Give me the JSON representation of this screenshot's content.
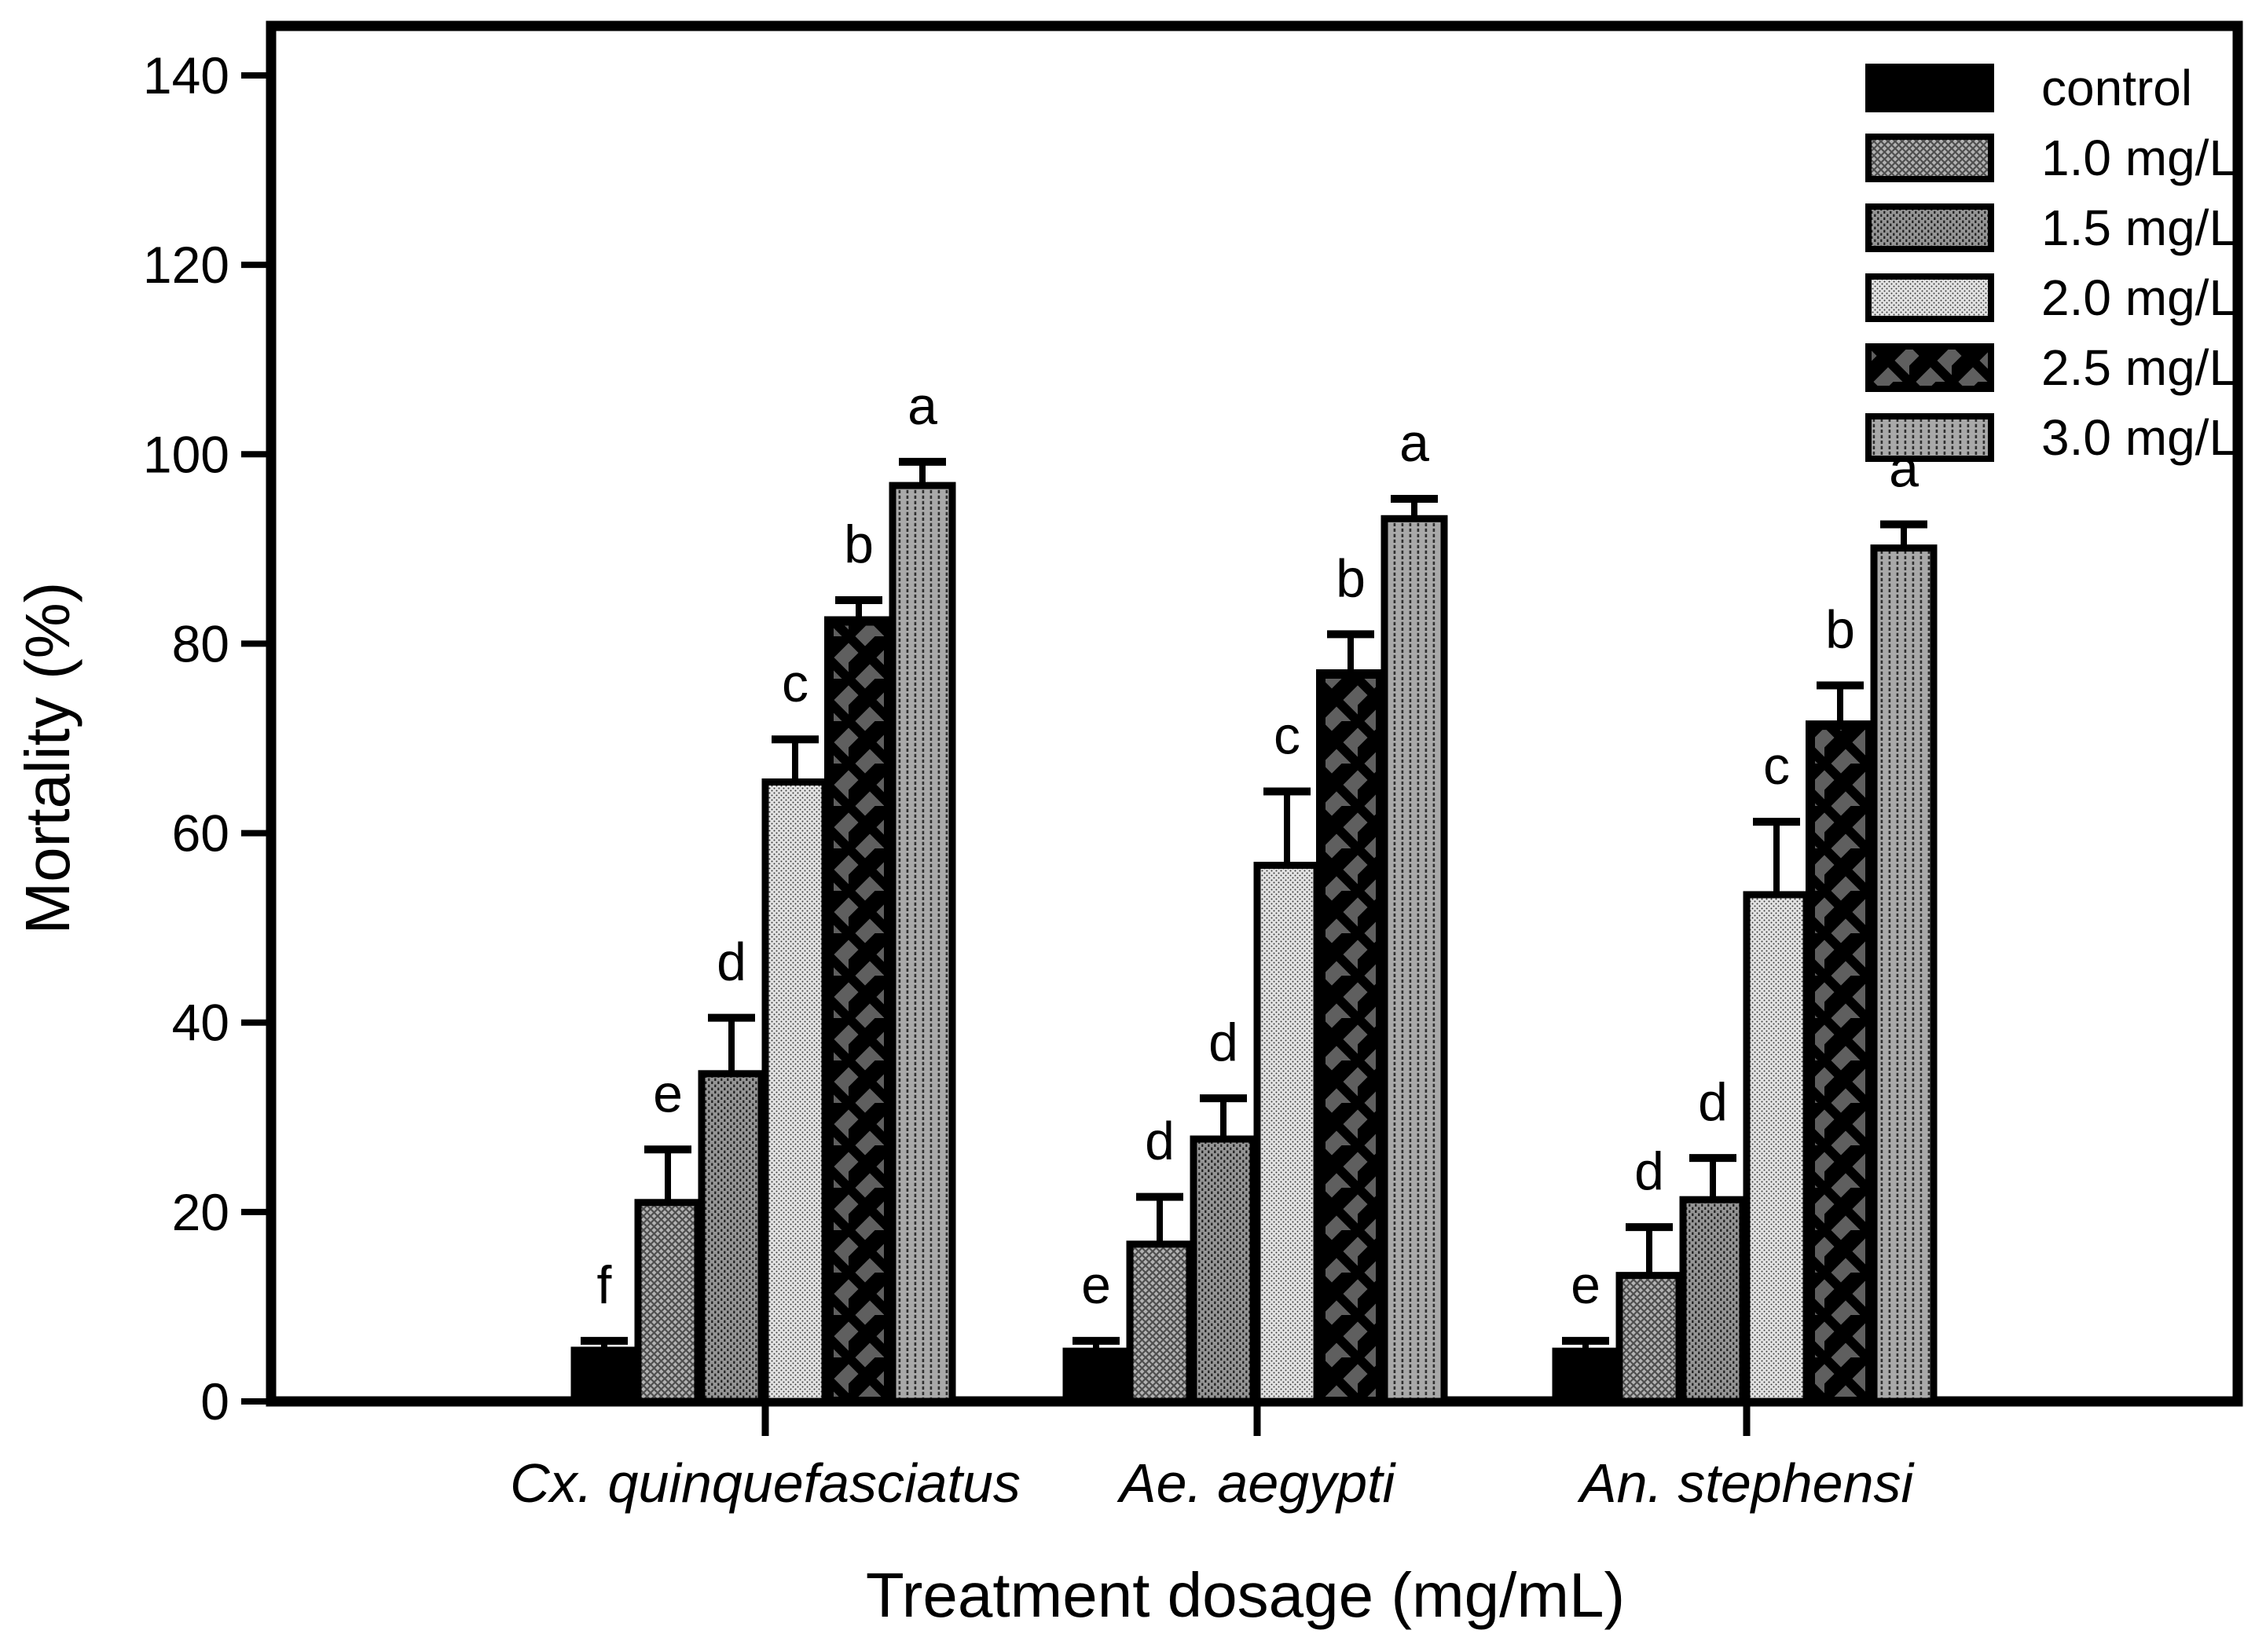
{
  "figure": {
    "background": "#ffffff",
    "frame_color": "#000000"
  },
  "chart_data": {
    "type": "bar",
    "title": "",
    "xlabel": "Treatment dosage (mg/mL)",
    "ylabel": "Mortality (%)",
    "ylim": [
      0,
      140
    ],
    "yticks": [
      0,
      20,
      40,
      60,
      80,
      100,
      120,
      140
    ],
    "grid": false,
    "error_bars": "upper",
    "legend_position": "top-right",
    "categories": [
      "Cx. quinquefasciatus",
      "Ae. aegypti",
      "An. stephensi"
    ],
    "series": [
      {
        "name": "control",
        "pattern": "solid-black",
        "color": "#000000",
        "values": [
          5.4,
          5.3,
          5.3
        ],
        "errors": [
          1.0,
          1.1,
          1.1
        ],
        "letters": [
          "f",
          "e",
          "e"
        ]
      },
      {
        "name": "1.0 mg/L",
        "pattern": "diagonal-weave",
        "color": "#b2b2b2",
        "values": [
          21.0,
          16.6,
          13.3
        ],
        "errors": [
          5.6,
          5.0,
          5.1
        ],
        "letters": [
          "e",
          "d",
          "d"
        ]
      },
      {
        "name": "1.5 mg/L",
        "pattern": "vertical-stipple-dark",
        "color": "#959595",
        "values": [
          34.6,
          27.7,
          21.3
        ],
        "errors": [
          5.9,
          4.3,
          4.4
        ],
        "letters": [
          "d",
          "d",
          "d"
        ]
      },
      {
        "name": "2.0 mg/L",
        "pattern": "fine-dots-light",
        "color": "#e3e3e3",
        "values": [
          65.4,
          56.6,
          53.5
        ],
        "errors": [
          4.5,
          7.8,
          7.7
        ],
        "letters": [
          "c",
          "c",
          "c"
        ]
      },
      {
        "name": "2.5 mg/L",
        "pattern": "crosshatch-dark",
        "color": "#5f5f5f",
        "values": [
          82.4,
          76.8,
          71.4
        ],
        "errors": [
          2.2,
          4.2,
          4.2
        ],
        "letters": [
          "b",
          "b",
          "b"
        ]
      },
      {
        "name": "3.0 mg/L",
        "pattern": "vertical-stipple-medium",
        "color": "#a9a9a9",
        "values": [
          96.7,
          93.2,
          90.1
        ],
        "errors": [
          2.5,
          2.1,
          2.5
        ],
        "letters": [
          "a",
          "a",
          "a"
        ]
      }
    ]
  }
}
